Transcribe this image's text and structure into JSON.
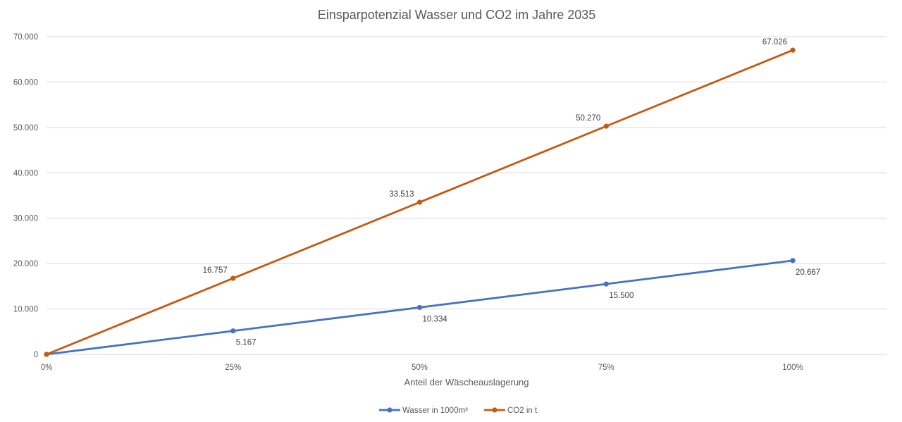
{
  "chart_data": {
    "type": "line",
    "title": "Einsparpotenzial Wasser und CO2 im Jahre 2035",
    "xlabel": "Anteil der Wäscheauslagerung",
    "ylabel": "",
    "categories": [
      "0%",
      "25%",
      "50%",
      "75%",
      "100%"
    ],
    "x": [
      0,
      25,
      50,
      75,
      100
    ],
    "ylim": [
      0,
      70000
    ],
    "yticks": [
      0,
      10000,
      20000,
      30000,
      40000,
      50000,
      60000,
      70000
    ],
    "ytick_labels": [
      "0",
      "10.000",
      "20.000",
      "30.000",
      "40.000",
      "50.000",
      "60.000",
      "70.000"
    ],
    "grid": true,
    "legend_position": "bottom",
    "series": [
      {
        "name": "Wasser in 1000m³",
        "color": "#4472C4",
        "values": [
          0,
          5167,
          10334,
          15500,
          20667
        ],
        "labels": [
          "",
          "5.167",
          "10.334",
          "15.500",
          "20.667"
        ],
        "label_position": "below"
      },
      {
        "name": "CO2 in t",
        "color": "#C55A11",
        "values": [
          0,
          16757,
          33513,
          50270,
          67026
        ],
        "labels": [
          "",
          "16.757",
          "33.513",
          "50.270",
          "67.026"
        ],
        "label_position": "above-left"
      }
    ]
  }
}
